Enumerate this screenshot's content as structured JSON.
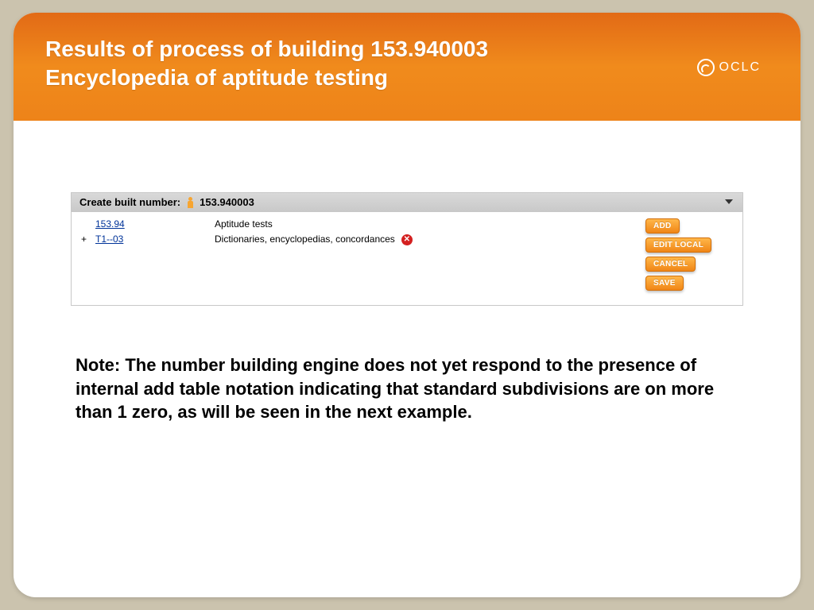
{
  "header": {
    "title_line1": "Results of process of building 153.940003",
    "title_line2": "Encyclopedia of aptitude testing",
    "logo_text": "OCLC"
  },
  "panel": {
    "label": "Create built number:",
    "number": "153.940003",
    "rows": [
      {
        "plus": "",
        "link": "153.94",
        "desc": "Aptitude tests",
        "removable": false
      },
      {
        "plus": "+",
        "link": "T1--03",
        "desc": "Dictionaries, encyclopedias, concordances",
        "removable": true
      }
    ],
    "buttons": {
      "add": "ADD",
      "edit_local": "EDIT LOCAL",
      "cancel": "CANCEL",
      "save": "SAVE"
    }
  },
  "note": "Note:  The number building engine does not yet respond to the presence of internal add table notation indicating that standard subdivisions are on more than 1 zero, as will be seen in the next example."
}
